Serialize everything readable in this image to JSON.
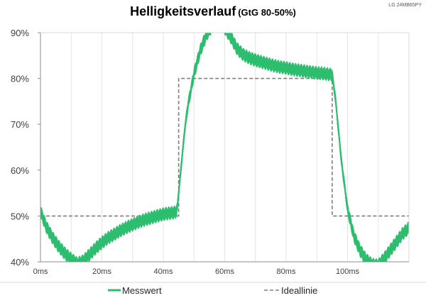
{
  "chart_data": {
    "type": "line",
    "title": "Helligkeitsverlauf",
    "subtitle": "(GtG 80-50%)",
    "corner_label": "LG 24MB65PY",
    "xlabel": "",
    "ylabel": "",
    "xlim": [
      0,
      120
    ],
    "ylim": [
      40,
      90
    ],
    "x_ticks": [
      "0ms",
      "20ms",
      "40ms",
      "60ms",
      "80ms",
      "100ms"
    ],
    "y_ticks": [
      "40%",
      "50%",
      "60%",
      "70%",
      "80%",
      "90%"
    ],
    "grid": "vertical",
    "legend_position": "bottom",
    "colors": {
      "measured": "#2dbd6e",
      "ideal": "#7f7f7f"
    },
    "series": [
      {
        "name": "Messwert",
        "style": "solid-noisy",
        "x": [
          0,
          2,
          4,
          6,
          8,
          10,
          12,
          14,
          16,
          18,
          20,
          22,
          24,
          26,
          28,
          30,
          32,
          34,
          36,
          38,
          40,
          42,
          44,
          44.5,
          46,
          47,
          48,
          50,
          52,
          54,
          56,
          58,
          60,
          62,
          64,
          66,
          68,
          70,
          72,
          74,
          76,
          78,
          80,
          82,
          84,
          86,
          88,
          90,
          92,
          94,
          95,
          96,
          97,
          98,
          100,
          102,
          104,
          106,
          108,
          110,
          112,
          114,
          116,
          118,
          120
        ],
        "y": [
          51,
          47.5,
          45.2,
          43.3,
          41.8,
          40.6,
          39.6,
          40.2,
          41.6,
          43.0,
          44.2,
          45.2,
          46.0,
          46.8,
          47.5,
          48.1,
          48.7,
          49.2,
          49.6,
          50.0,
          50.4,
          50.6,
          50.8,
          51.5,
          62,
          69,
          74,
          81,
          86,
          89.5,
          91.5,
          92,
          91,
          89,
          86.5,
          85.2,
          84.5,
          84.0,
          83.6,
          83.2,
          82.8,
          82.5,
          82.3,
          82.0,
          81.8,
          81.6,
          81.4,
          81.2,
          81.1,
          80.9,
          80.8,
          76,
          69,
          62,
          51.5,
          45.8,
          42.6,
          40.5,
          39.4,
          39.2,
          40.8,
          42.6,
          44.4,
          46.2,
          47.4
        ],
        "noise_band": 1.5
      },
      {
        "name": "Ideallinie",
        "style": "dashed",
        "x": [
          0,
          45,
          45,
          95,
          95,
          120
        ],
        "y": [
          50,
          50,
          80,
          80,
          50,
          50
        ]
      }
    ]
  }
}
